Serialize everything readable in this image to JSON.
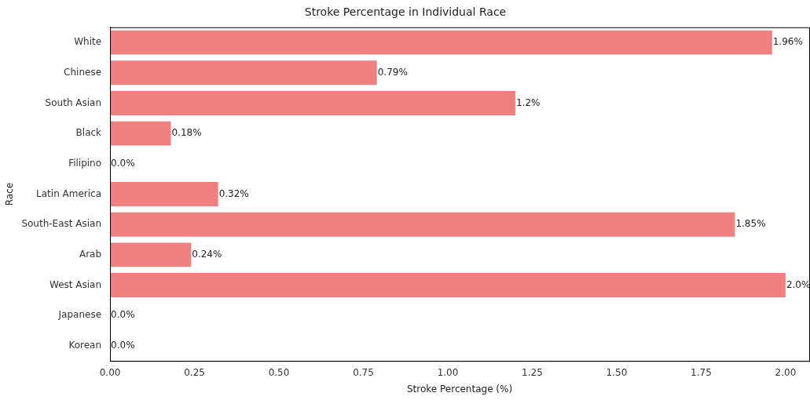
{
  "chart_data": {
    "type": "bar",
    "orientation": "horizontal",
    "title": "Stroke Percentage in Individual Race",
    "xlabel": "Stroke Percentage (%)",
    "ylabel": "Race",
    "categories": [
      "White",
      "Chinese",
      "South Asian",
      "Black",
      "Filipino",
      "Latin America",
      "South-East Asian",
      "Arab",
      "West Asian",
      "Japanese",
      "Korean"
    ],
    "values": [
      1.96,
      0.79,
      1.2,
      0.18,
      0.0,
      0.32,
      1.85,
      0.24,
      2.0,
      0.0,
      0.0
    ],
    "value_labels": [
      "1.96%",
      "0.79%",
      "1.2%",
      "0.18%",
      "0.0%",
      "0.32%",
      "1.85%",
      "0.24%",
      "2.0%",
      "0.0%",
      "0.0%"
    ],
    "color": "#f08080",
    "xlim": [
      0,
      2.07
    ],
    "xticks": [
      {
        "value": 0,
        "label": "0.00"
      },
      {
        "value": 0.25,
        "label": "0.25"
      },
      {
        "value": 0.5,
        "label": "0.50"
      },
      {
        "value": 0.75,
        "label": "0.75"
      },
      {
        "value": 1,
        "label": "1.00"
      },
      {
        "value": 1.25,
        "label": "1.25"
      },
      {
        "value": 1.5,
        "label": "1.50"
      },
      {
        "value": 1.75,
        "label": "1.75"
      },
      {
        "value": 2,
        "label": "2.00"
      }
    ],
    "grid": false,
    "legend": false
  }
}
